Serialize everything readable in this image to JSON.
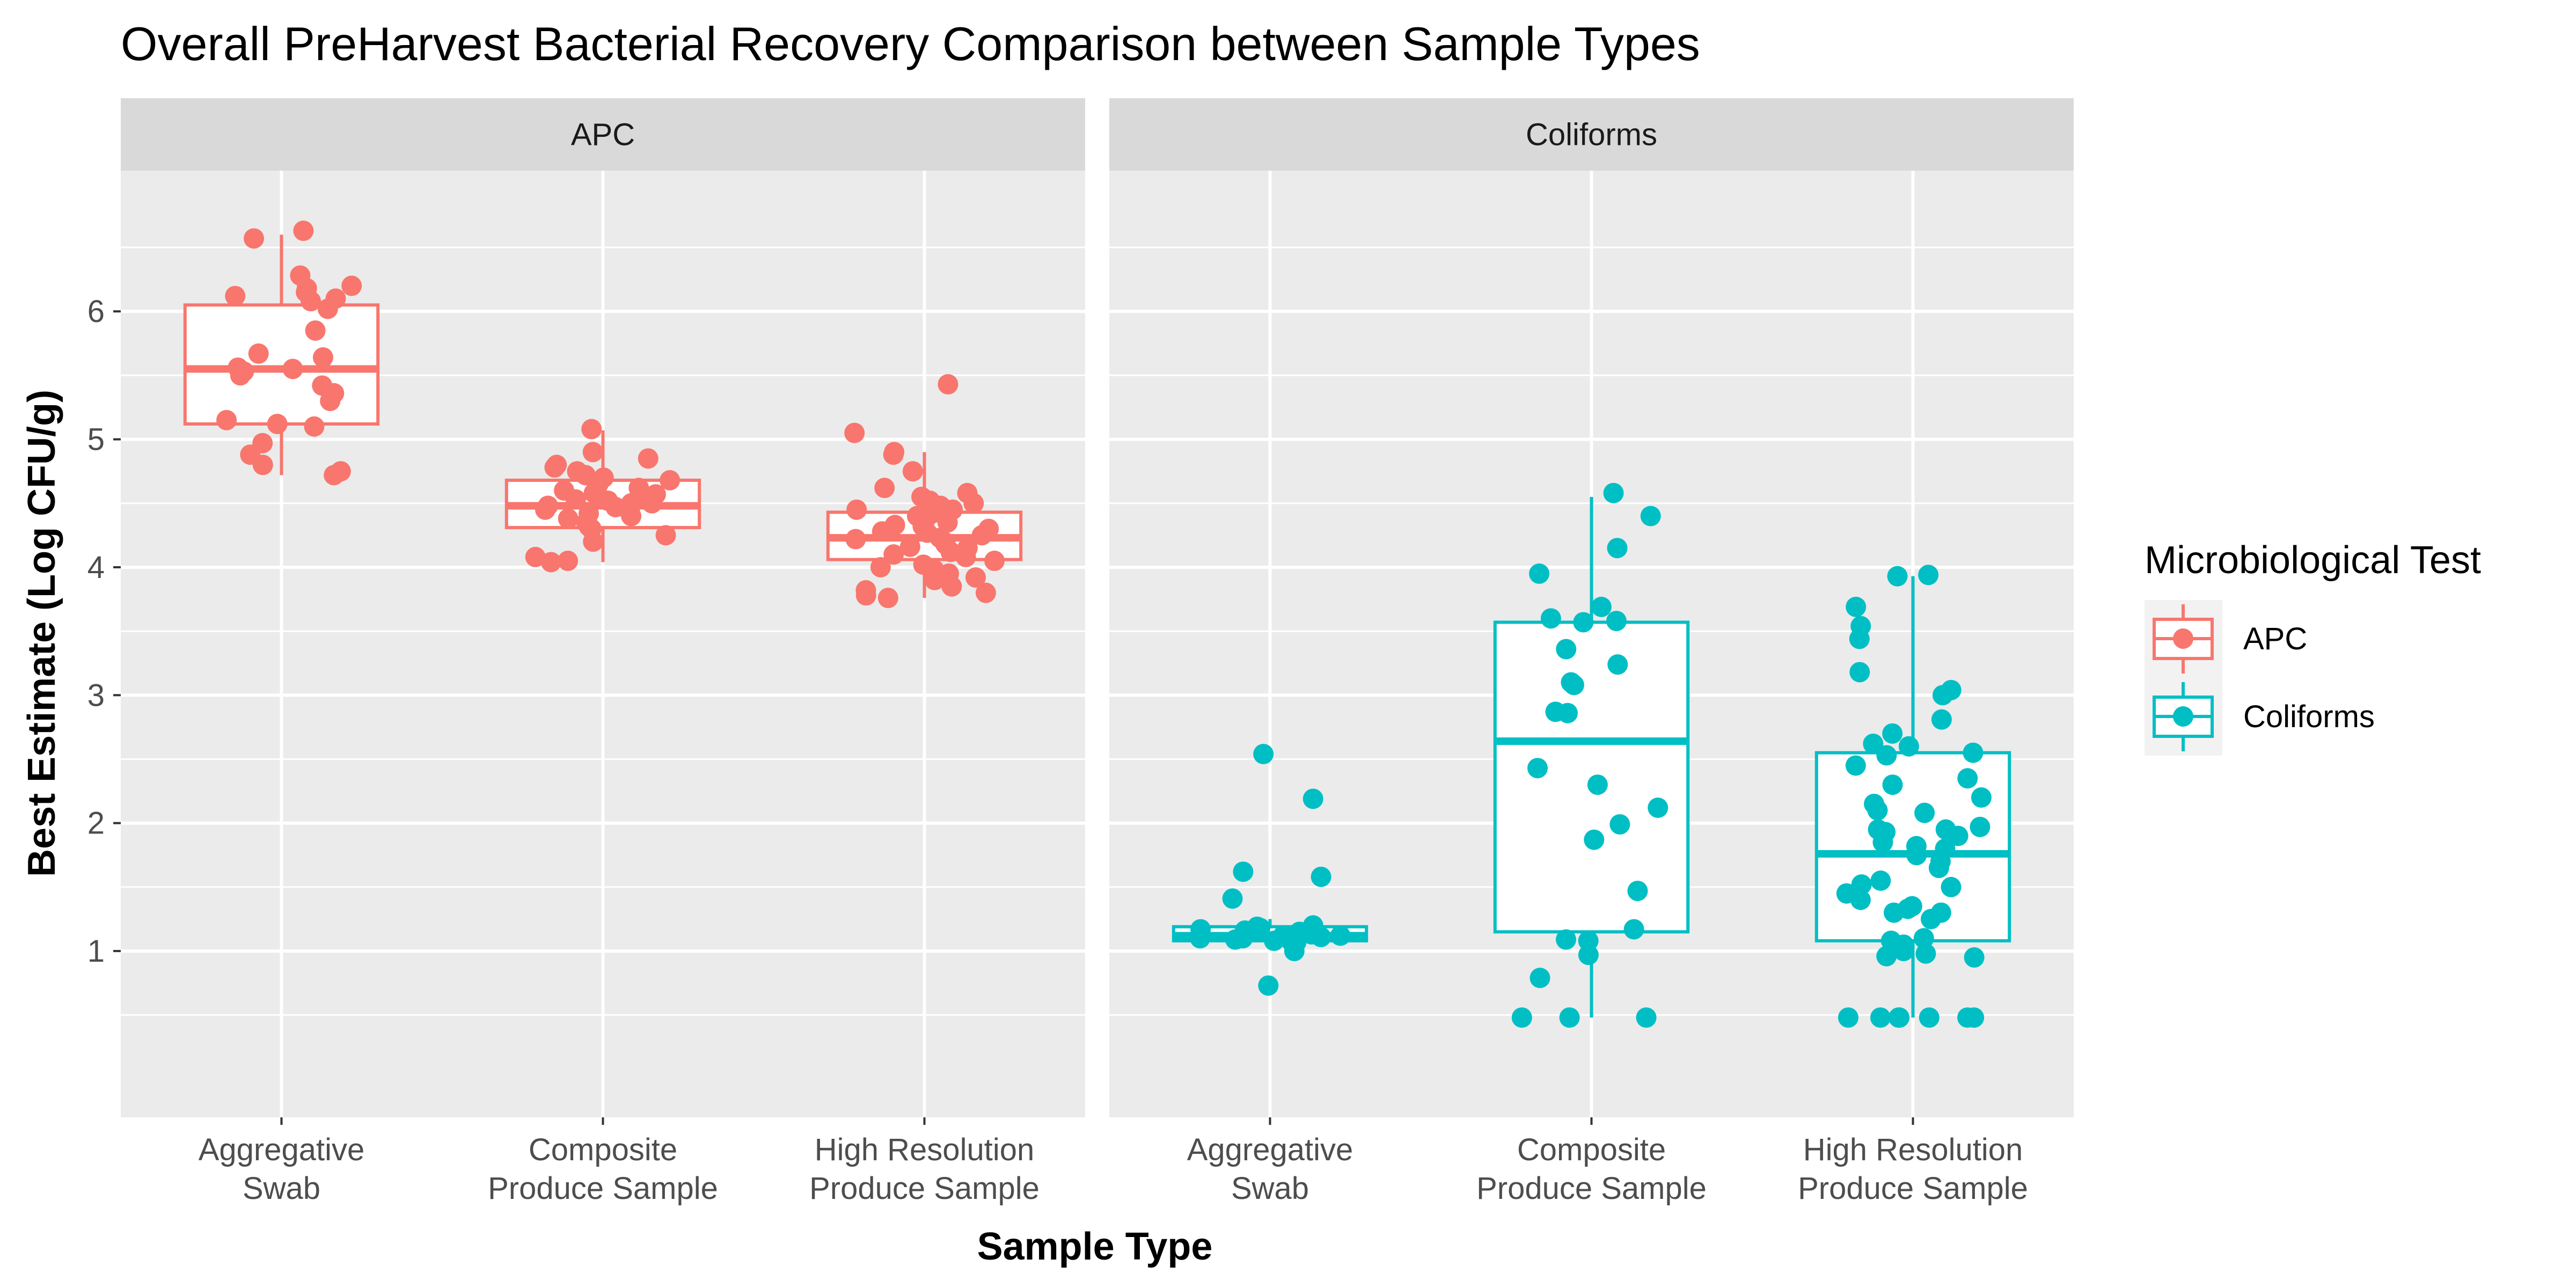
{
  "chart_data": {
    "type": "box",
    "title": "Overall PreHarvest Bacterial Recovery Comparison between Sample Types",
    "xlabel": "Sample Type",
    "ylabel": "Best Estimate (Log CFU/g)",
    "ylim": [
      -0.3,
      7.1
    ],
    "yticks": [
      1,
      2,
      3,
      4,
      5,
      6
    ],
    "grid": true,
    "legend": {
      "title": "Microbiological Test",
      "placement": "right",
      "entries": [
        {
          "name": "APC",
          "color": "#F8766D"
        },
        {
          "name": "Coliforms",
          "color": "#00BFC4"
        }
      ]
    },
    "categories": [
      [
        "Aggregative",
        "Swab"
      ],
      [
        "Composite",
        "Produce Sample"
      ],
      [
        "High Resolution",
        "Produce Sample"
      ]
    ],
    "facets": [
      {
        "name": "APC",
        "color": "#F8766D",
        "boxes": [
          {
            "q1": 5.12,
            "median": 5.55,
            "q3": 6.05,
            "whisker_low": 4.72,
            "whisker_high": 6.6,
            "points": [
              6.63,
              6.57,
              6.28,
              6.2,
              6.18,
              6.15,
              6.12,
              6.1,
              6.08,
              6.02,
              5.85,
              5.67,
              5.64,
              5.56,
              5.55,
              5.53,
              5.5,
              5.42,
              5.36,
              5.3,
              5.15,
              5.12,
              5.1,
              4.97,
              4.88,
              4.8,
              4.75,
              4.72
            ]
          },
          {
            "q1": 4.31,
            "median": 4.48,
            "q3": 4.68,
            "whisker_low": 4.04,
            "whisker_high": 5.07,
            "points": [
              5.08,
              4.9,
              4.85,
              4.8,
              4.78,
              4.75,
              4.72,
              4.7,
              4.68,
              4.65,
              4.62,
              4.6,
              4.58,
              4.57,
              4.55,
              4.53,
              4.52,
              4.5,
              4.5,
              4.48,
              4.47,
              4.45,
              4.43,
              4.42,
              4.4,
              4.38,
              4.35,
              4.32,
              4.3,
              4.25,
              4.2,
              4.08,
              4.05,
              4.04
            ]
          },
          {
            "q1": 4.06,
            "median": 4.23,
            "q3": 4.43,
            "whisker_low": 3.76,
            "whisker_high": 4.9,
            "points": [
              5.43,
              5.05,
              4.9,
              4.88,
              4.75,
              4.62,
              4.58,
              4.55,
              4.52,
              4.5,
              4.48,
              4.45,
              4.45,
              4.42,
              4.4,
              4.38,
              4.35,
              4.33,
              4.32,
              4.3,
              4.28,
              4.27,
              4.25,
              4.23,
              4.22,
              4.2,
              4.18,
              4.16,
              4.15,
              4.12,
              4.1,
              4.08,
              4.05,
              4.02,
              4.0,
              3.98,
              3.95,
              3.92,
              3.9,
              3.85,
              3.82,
              3.8,
              3.78,
              3.76
            ]
          }
        ]
      },
      {
        "name": "Coliforms",
        "color": "#00BFC4",
        "boxes": [
          {
            "q1": 1.08,
            "median": 1.12,
            "q3": 1.19,
            "whisker_low": 1.03,
            "whisker_high": 1.25,
            "points": [
              2.54,
              2.19,
              1.62,
              1.58,
              1.41,
              1.2,
              1.19,
              1.18,
              1.17,
              1.16,
              1.15,
              1.14,
              1.13,
              1.12,
              1.12,
              1.11,
              1.1,
              1.1,
              1.09,
              1.08,
              1.08,
              1.07,
              1.0,
              0.73
            ]
          },
          {
            "q1": 1.15,
            "median": 2.64,
            "q3": 3.57,
            "whisker_low": 0.48,
            "whisker_high": 4.55,
            "points": [
              4.58,
              4.4,
              4.15,
              3.95,
              3.69,
              3.6,
              3.58,
              3.57,
              3.36,
              3.24,
              3.1,
              3.08,
              2.87,
              2.86,
              2.43,
              2.3,
              2.12,
              1.99,
              1.87,
              1.47,
              1.17,
              1.09,
              1.08,
              0.97,
              0.79,
              0.48,
              0.48,
              0.48
            ]
          },
          {
            "q1": 1.08,
            "median": 1.76,
            "q3": 2.55,
            "whisker_low": 0.48,
            "whisker_high": 3.93,
            "points": [
              3.94,
              3.93,
              3.69,
              3.54,
              3.44,
              3.18,
              3.04,
              3.0,
              2.81,
              2.7,
              2.62,
              2.6,
              2.55,
              2.53,
              2.45,
              2.35,
              2.3,
              2.2,
              2.15,
              2.1,
              2.08,
              1.97,
              1.95,
              1.95,
              1.93,
              1.9,
              1.85,
              1.82,
              1.8,
              1.75,
              1.7,
              1.65,
              1.55,
              1.52,
              1.5,
              1.45,
              1.4,
              1.35,
              1.33,
              1.3,
              1.3,
              1.25,
              1.1,
              1.08,
              1.05,
              1.0,
              0.98,
              0.96,
              0.95,
              0.48,
              0.48,
              0.48,
              0.48,
              0.48,
              0.48,
              0.48,
              0.48
            ]
          }
        ]
      }
    ]
  }
}
